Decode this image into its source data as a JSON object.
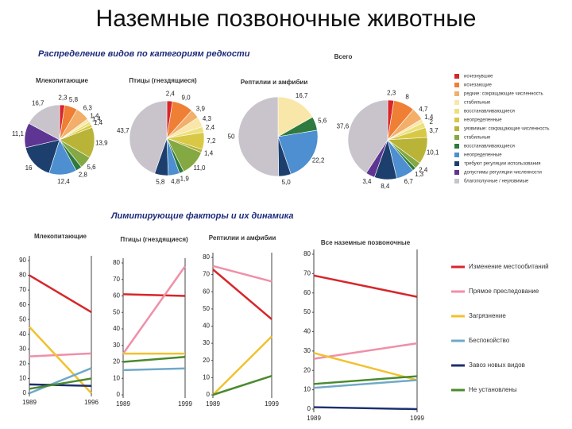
{
  "title": "Наземные позвоночные животные",
  "section_1": "Распределение видов по категориям редкости",
  "section_2": "Лимитирующие факторы и их динамика",
  "pie_legend": {
    "labels": [
      "исчезнувшие",
      "исчезающие",
      "редкие: сокращающие численность",
      "стабильные",
      "восстанавливающиеся",
      "неопределенные",
      "уязвимые: сокращающие численность",
      "стабильные",
      "восстанавливающиеся",
      "неопределенные",
      "требуют регуляции использования",
      "допустимы регуляции численности",
      "благополучные / неуязвимые"
    ],
    "colors": [
      "#d7262b",
      "#ef7f35",
      "#f3ae6a",
      "#f8e7a8",
      "#ece07c",
      "#d9c846",
      "#b9b437",
      "#84a842",
      "#2e7a3f",
      "#4d8fd0",
      "#1d3f6e",
      "#5e3592",
      "#c9c4cc"
    ]
  },
  "chart_data": [
    {
      "type": "pie",
      "title": "Млекопитающие",
      "values": [
        2.3,
        5.8,
        6.3,
        1.4,
        1.4,
        1.4,
        13.9,
        5.6,
        2.8,
        12.4,
        16,
        11.1,
        16.7
      ],
      "value_labels": [
        "2,3",
        "5,8",
        "6,3",
        "1,4",
        "1,4",
        "1,4",
        "13,9",
        "5,6",
        "2,8",
        "12,4",
        "16",
        "11,1",
        "16,7"
      ]
    },
    {
      "type": "pie",
      "title": "Птицы (гнездящиеся)",
      "values": [
        2.4,
        9.0,
        3.9,
        4.3,
        2.4,
        7.2,
        1.4,
        11.0,
        1.9,
        4.8,
        5.8,
        null,
        43.7
      ],
      "value_labels": [
        "2,4",
        "9,0",
        "3,9",
        "4,3",
        "2,4",
        "7,2",
        "1,4",
        "11,0",
        "1,9",
        "4,8",
        "5,8",
        null,
        "43,7"
      ]
    },
    {
      "type": "pie",
      "title": "Рептилии и амфибии",
      "values": [
        null,
        null,
        null,
        16.7,
        null,
        null,
        null,
        null,
        5.6,
        22.2,
        5.0,
        null,
        50
      ],
      "value_labels": [
        null,
        null,
        null,
        "16,7",
        null,
        null,
        null,
        null,
        "5,6",
        "22,2",
        "5,0",
        null,
        "50"
      ]
    },
    {
      "type": "pie",
      "title": "Всего",
      "values": [
        2.3,
        8,
        4.7,
        1.4,
        2,
        3.7,
        10.1,
        2.4,
        1.3,
        6.7,
        8.4,
        3.4,
        37.6
      ],
      "value_labels": [
        "2,3",
        "8",
        "4,7",
        "1,4",
        "2",
        "3,7",
        "10,1",
        "2,4",
        "1,3",
        "6,7",
        "8,4",
        "3,4",
        "37,6"
      ]
    },
    {
      "type": "line",
      "title": "Млекопитающие",
      "categories": [
        "1989",
        "1996"
      ],
      "ylim": [
        0,
        90
      ],
      "yticks": [
        0,
        10,
        20,
        30,
        40,
        50,
        60,
        70,
        80,
        90
      ],
      "series": [
        {
          "color": "#d7262b",
          "values": [
            80,
            55
          ]
        },
        {
          "color": "#f08fa8",
          "values": [
            25,
            27
          ]
        },
        {
          "color": "#f2c12e",
          "values": [
            45,
            0
          ]
        },
        {
          "color": "#6fa9c8",
          "values": [
            0,
            17
          ]
        },
        {
          "color": "#1d2f6e",
          "values": [
            6,
            5
          ]
        },
        {
          "color": "#4a8a2e",
          "values": [
            3,
            10
          ]
        }
      ]
    },
    {
      "type": "line",
      "title": "Птицы (гнездящиеся)",
      "categories": [
        "1989",
        "1999"
      ],
      "ylim": [
        0,
        80
      ],
      "yticks": [
        0,
        10,
        20,
        30,
        40,
        50,
        60,
        70,
        80
      ],
      "series": [
        {
          "color": "#d7262b",
          "values": [
            61,
            60
          ]
        },
        {
          "color": "#f08fa8",
          "values": [
            25,
            78
          ]
        },
        {
          "color": "#f2c12e",
          "values": [
            25,
            25
          ]
        },
        {
          "color": "#6fa9c8",
          "values": [
            15,
            16
          ]
        },
        {
          "color": "#1d2f6e",
          "values": [
            null,
            null
          ]
        },
        {
          "color": "#4a8a2e",
          "values": [
            20,
            23
          ]
        }
      ]
    },
    {
      "type": "line",
      "title": "Рептилии и амфибии",
      "categories": [
        "1989",
        "1999"
      ],
      "ylim": [
        0,
        80
      ],
      "yticks": [
        0,
        10,
        20,
        30,
        40,
        50,
        60,
        70,
        80
      ],
      "series": [
        {
          "color": "#d7262b",
          "values": [
            73,
            44
          ]
        },
        {
          "color": "#f08fa8",
          "values": [
            75,
            66
          ]
        },
        {
          "color": "#f2c12e",
          "values": [
            0,
            34
          ]
        },
        {
          "color": "#6fa9c8",
          "values": [
            null,
            null
          ]
        },
        {
          "color": "#1d2f6e",
          "values": [
            null,
            null
          ]
        },
        {
          "color": "#4a8a2e",
          "values": [
            0,
            11
          ]
        }
      ]
    },
    {
      "type": "line",
      "title": "Все наземные позвоночные",
      "categories": [
        "1989",
        "1999"
      ],
      "ylim": [
        0,
        80
      ],
      "yticks": [
        0,
        10,
        20,
        30,
        40,
        50,
        60,
        70,
        80
      ],
      "series": [
        {
          "name": "Изменение местообитаний",
          "color": "#d7262b",
          "values": [
            69,
            58
          ]
        },
        {
          "name": "Прямое преследование",
          "color": "#f08fa8",
          "values": [
            26,
            34
          ]
        },
        {
          "name": "Загрязнение",
          "color": "#f2c12e",
          "values": [
            29,
            15
          ]
        },
        {
          "name": "Беспокойство",
          "color": "#6fa9c8",
          "values": [
            11,
            15
          ]
        },
        {
          "name": "Завоз новых видов",
          "color": "#1d2f6e",
          "values": [
            1,
            0
          ]
        },
        {
          "name": "Не установлены",
          "color": "#4a8a2e",
          "values": [
            13,
            17
          ]
        }
      ]
    }
  ]
}
